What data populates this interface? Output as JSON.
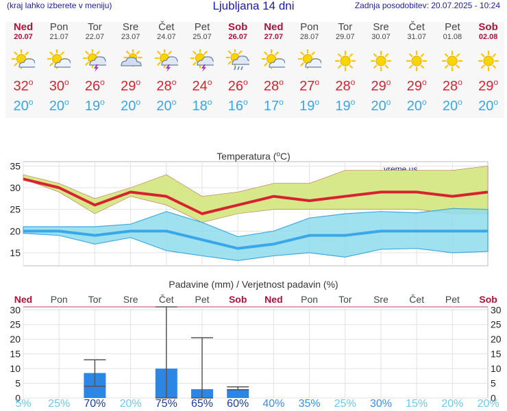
{
  "header": {
    "menu_hint": "(kraj lahko izberete v meniju)",
    "title": "Ljubljana 14 dni",
    "updated": "Zadnja posodobitev: 20.07.2025 - 10:24"
  },
  "days": [
    {
      "name": "Ned",
      "date": "20.07",
      "weekend": true,
      "icon": "partly-cloudy-icon",
      "tmax": "32",
      "tmin": "20"
    },
    {
      "name": "Pon",
      "date": "21.07",
      "weekend": false,
      "icon": "partly-cloudy-icon",
      "tmax": "30",
      "tmin": "20"
    },
    {
      "name": "Tor",
      "date": "22.07",
      "weekend": false,
      "icon": "thunderstorm-icon",
      "tmax": "26",
      "tmin": "19"
    },
    {
      "name": "Sre",
      "date": "23.07",
      "weekend": false,
      "icon": "cloudy-icon",
      "tmax": "29",
      "tmin": "20"
    },
    {
      "name": "Čet",
      "date": "24.07",
      "weekend": false,
      "icon": "thunderstorm-icon",
      "tmax": "28",
      "tmin": "20"
    },
    {
      "name": "Pet",
      "date": "25.07",
      "weekend": false,
      "icon": "thunderstorm-icon",
      "tmax": "24",
      "tmin": "18"
    },
    {
      "name": "Sob",
      "date": "26.07",
      "weekend": true,
      "icon": "rain-icon",
      "tmax": "26",
      "tmin": "16"
    },
    {
      "name": "Ned",
      "date": "27.07",
      "weekend": true,
      "icon": "partly-cloudy-icon",
      "tmax": "28",
      "tmin": "17"
    },
    {
      "name": "Pon",
      "date": "28.07",
      "weekend": false,
      "icon": "partly-cloudy-icon",
      "tmax": "27",
      "tmin": "19"
    },
    {
      "name": "Tor",
      "date": "29.07",
      "weekend": false,
      "icon": "sunny-icon",
      "tmax": "28",
      "tmin": "19"
    },
    {
      "name": "Sre",
      "date": "30.07",
      "weekend": false,
      "icon": "sunny-icon",
      "tmax": "29",
      "tmin": "20"
    },
    {
      "name": "Čet",
      "date": "31.07",
      "weekend": false,
      "icon": "sunny-icon",
      "tmax": "29",
      "tmin": "20"
    },
    {
      "name": "Pet",
      "date": "01.08",
      "weekend": false,
      "icon": "sunny-icon",
      "tmax": "28",
      "tmin": "20"
    },
    {
      "name": "Sob",
      "date": "02.08",
      "weekend": true,
      "icon": "sunny-icon",
      "tmax": "29",
      "tmin": "20"
    }
  ],
  "degree_symbol": "o",
  "colors": {
    "weekend": "#b0103a",
    "tmax": "#d6232f",
    "tmin": "#35a6e8",
    "band_max": "#d6e88a",
    "band_min": "#8fdcec",
    "bar": "#2c86e6"
  },
  "chart_data": [
    {
      "type": "line",
      "title": "Temperatura (°C)",
      "title_prefix": "Temperatura (",
      "title_unit_sup": "o",
      "title_unit_tail": "C)",
      "watermark": "vreme.us",
      "ylim": [
        12,
        36
      ],
      "yticks": [
        15,
        20,
        25,
        30,
        35
      ],
      "series": [
        {
          "name": "Tmax",
          "values": [
            32,
            30,
            26,
            29,
            28,
            24,
            26,
            28,
            27,
            28,
            29,
            29,
            28,
            29
          ],
          "band_low": [
            32,
            29,
            24,
            28,
            26,
            22,
            24,
            25,
            25,
            25,
            25,
            25,
            24,
            24
          ],
          "band_high": [
            33,
            31,
            27.5,
            30,
            33,
            28,
            29,
            31,
            31,
            34,
            34,
            34,
            34,
            35
          ]
        },
        {
          "name": "Tmin",
          "values": [
            20,
            20,
            19,
            20,
            20,
            18,
            16,
            17,
            19,
            19,
            20,
            20,
            20,
            20
          ],
          "band_low": [
            19.5,
            19,
            17,
            18.5,
            15.5,
            14.3,
            13.2,
            14.3,
            15,
            14,
            15.8,
            16,
            15,
            15.3
          ],
          "band_high": [
            21,
            21,
            21,
            21.6,
            24.5,
            22,
            18.7,
            20,
            23,
            24,
            24.5,
            24.2,
            25.2,
            25
          ]
        }
      ]
    },
    {
      "type": "bar",
      "title": "Padavine (mm) / Verjetnost padavin (%)",
      "ylim": [
        0,
        31
      ],
      "yticks": [
        0,
        5,
        10,
        15,
        20,
        25,
        30
      ],
      "categories": [
        "Ned",
        "Pon",
        "Tor",
        "Sre",
        "Čet",
        "Pet",
        "Sob",
        "Ned",
        "Pon",
        "Tor",
        "Sre",
        "Čet",
        "Pet",
        "Sob"
      ],
      "weekend": [
        true,
        false,
        false,
        false,
        false,
        false,
        true,
        true,
        false,
        false,
        false,
        false,
        false,
        true
      ],
      "values": [
        0,
        0,
        8.5,
        0,
        10,
        3,
        3,
        0,
        0,
        0,
        0,
        0,
        0,
        0
      ],
      "err_low": [
        null,
        null,
        4,
        null,
        0,
        0,
        2.8,
        null,
        null,
        null,
        null,
        null,
        null,
        null
      ],
      "err_high": [
        null,
        null,
        13,
        null,
        31,
        20.5,
        3.8,
        null,
        null,
        null,
        null,
        null,
        null,
        null
      ],
      "probability": [
        "5%",
        "25%",
        "70%",
        "20%",
        "75%",
        "65%",
        "60%",
        "40%",
        "35%",
        "25%",
        "30%",
        "15%",
        "20%",
        "20%"
      ]
    }
  ]
}
